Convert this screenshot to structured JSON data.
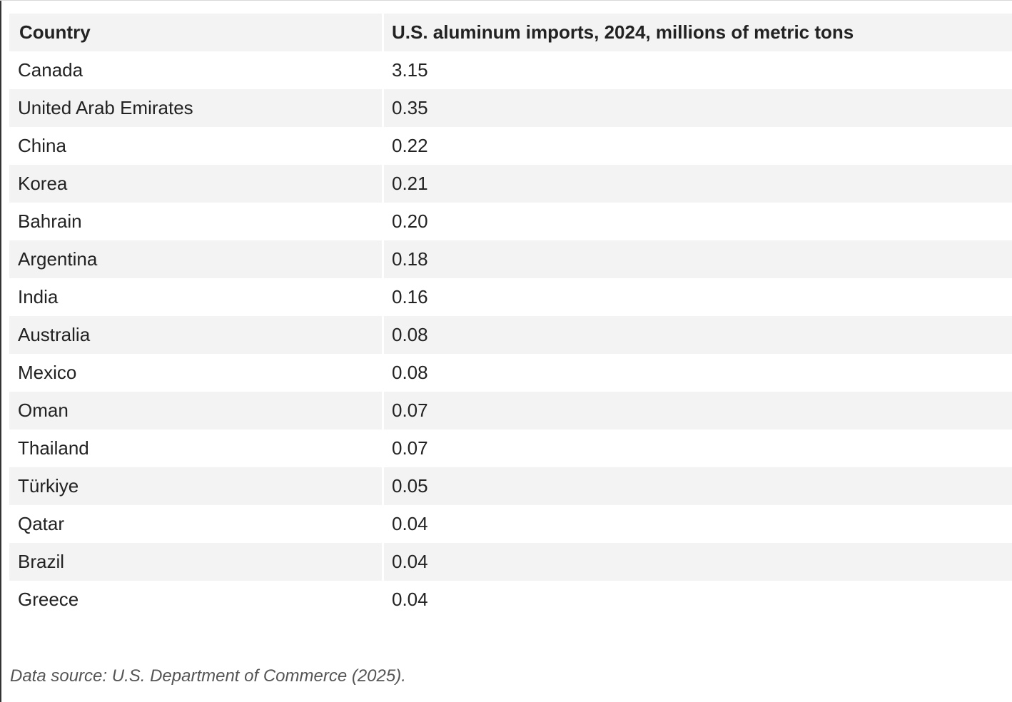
{
  "chart_data": {
    "type": "table",
    "columns": [
      "Country",
      "U.S. aluminum imports, 2024, millions of metric tons"
    ],
    "rows": [
      {
        "country": "Canada",
        "value": "3.15"
      },
      {
        "country": "United Arab Emirates",
        "value": "0.35"
      },
      {
        "country": "China",
        "value": "0.22"
      },
      {
        "country": "Korea",
        "value": "0.21"
      },
      {
        "country": "Bahrain",
        "value": "0.20"
      },
      {
        "country": "Argentina",
        "value": "0.18"
      },
      {
        "country": "India",
        "value": "0.16"
      },
      {
        "country": "Australia",
        "value": "0.08"
      },
      {
        "country": "Mexico",
        "value": "0.08"
      },
      {
        "country": "Oman",
        "value": "0.07"
      },
      {
        "country": "Thailand",
        "value": "0.07"
      },
      {
        "country": "Türkiye",
        "value": "0.05"
      },
      {
        "country": "Qatar",
        "value": "0.04"
      },
      {
        "country": "Brazil",
        "value": "0.04"
      },
      {
        "country": "Greece",
        "value": "0.04"
      }
    ]
  },
  "source_note": "Data source: U.S. Department of Commerce (2025).",
  "colors": {
    "shaded_row": "#f3f3f3",
    "text": "#222222",
    "source_text": "#555555"
  }
}
